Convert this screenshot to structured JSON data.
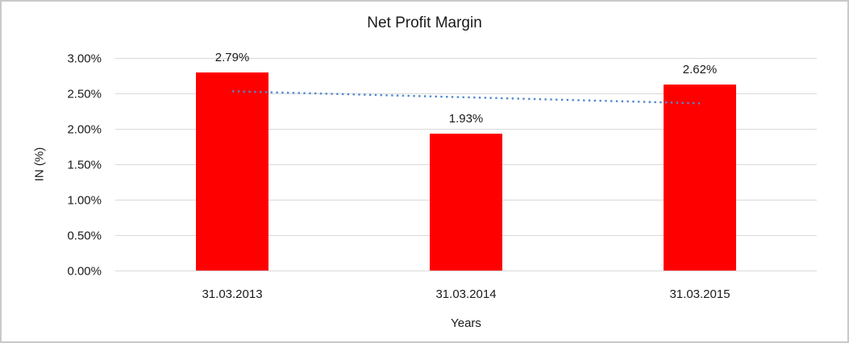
{
  "chart_data": {
    "type": "bar",
    "title": "Net Profit Margin",
    "xlabel": "Years",
    "ylabel": "IN (%)",
    "categories": [
      "31.03.2013",
      "31.03.2014",
      "31.03.2015"
    ],
    "values": [
      2.79,
      1.93,
      2.62
    ],
    "data_labels": [
      "2.79%",
      "1.93%",
      "2.62%"
    ],
    "y_ticks": [
      {
        "label": "3.00%",
        "value": 3.0
      },
      {
        "label": "2.50%",
        "value": 2.5
      },
      {
        "label": "2.00%",
        "value": 2.0
      },
      {
        "label": "1.50%",
        "value": 1.5
      },
      {
        "label": "1.00%",
        "value": 1.0
      },
      {
        "label": "0.50%",
        "value": 0.5
      },
      {
        "label": "0.00%",
        "value": 0.0
      }
    ],
    "ylim": [
      0,
      3.0
    ],
    "grid": true,
    "legend": "none",
    "trendline": {
      "type": "linear",
      "style": "dotted",
      "start_value": 2.53,
      "end_value": 2.36
    }
  },
  "colors": {
    "bar": "#FF0000",
    "trendline": "#5089CE",
    "gridline": "#D9D9D9",
    "text": "#1A1A1A",
    "border": "#C9C9C9",
    "background": "#FFFFFF"
  }
}
